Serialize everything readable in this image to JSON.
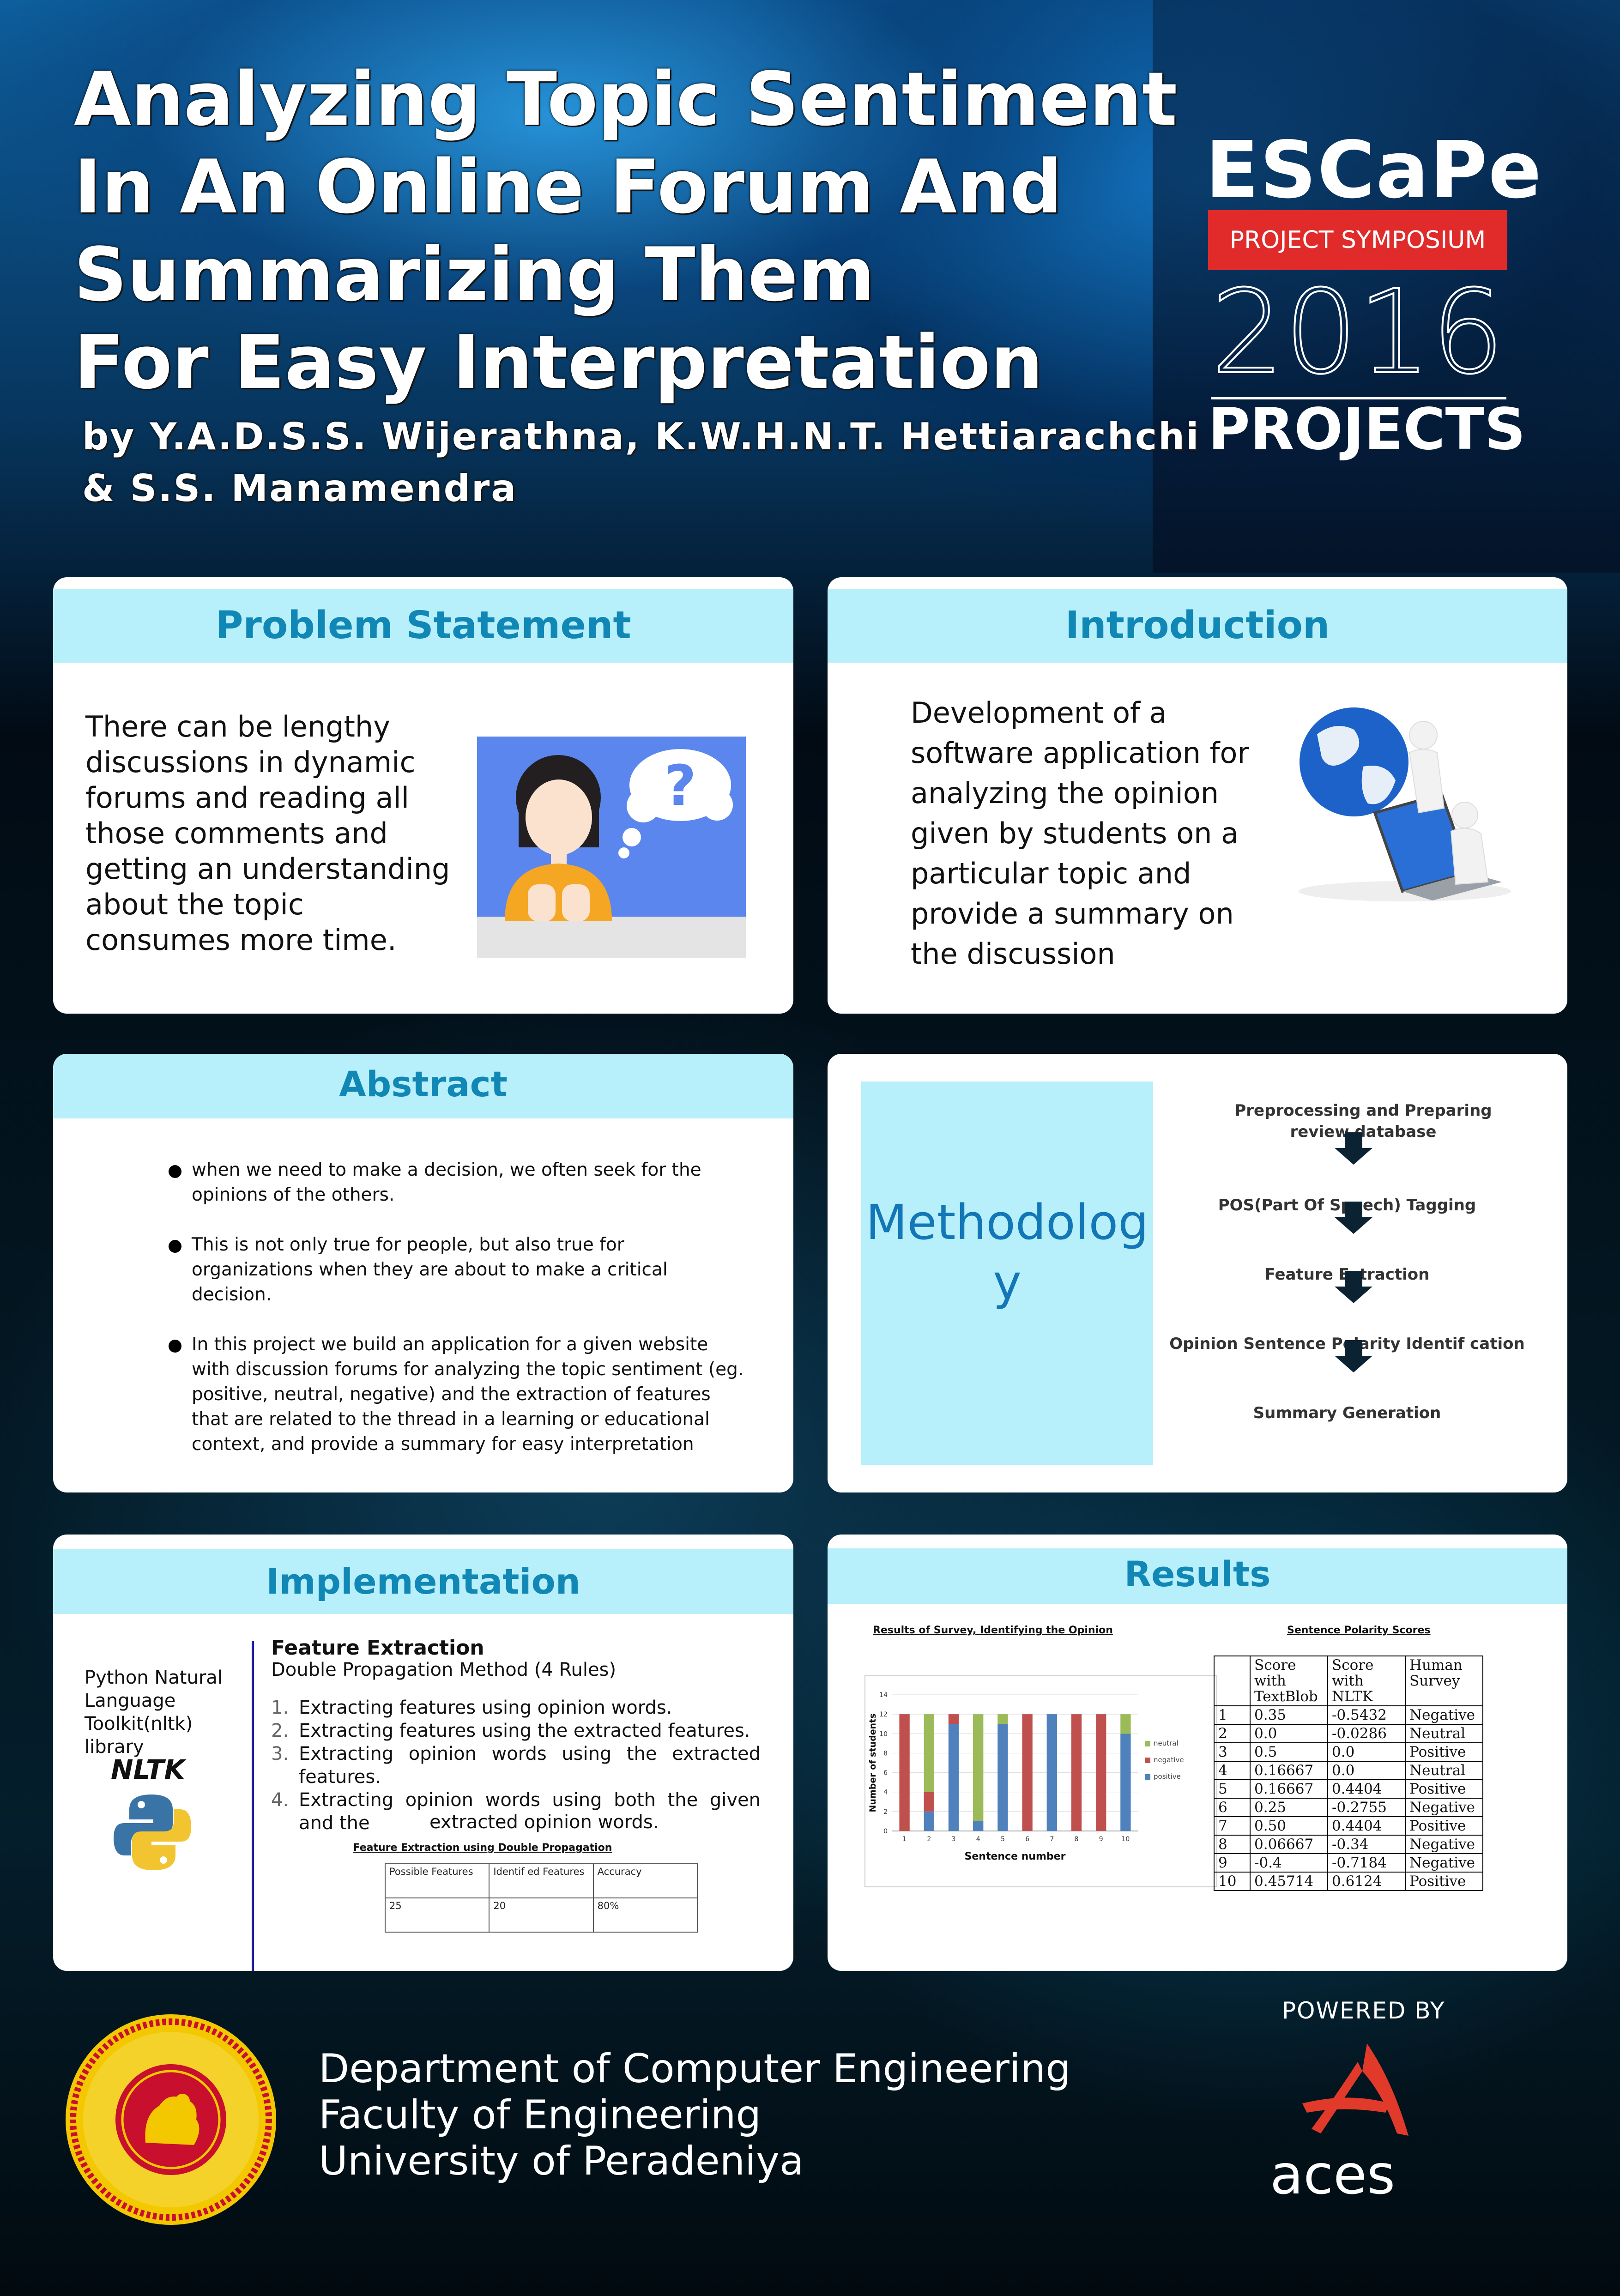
{
  "header": {
    "title_lines": [
      "Analyzing Topic Sentiment",
      "In An Online Forum And",
      "Summarizing Them",
      "For Easy Interpretation"
    ],
    "authors_lines": [
      "by Y.A.D.S.S. Wijerathna, K.W.H.N.T. Hettiarachchi",
      "& S.S. Manamendra"
    ]
  },
  "event": {
    "name": "ESCaPe",
    "band": "PROJECT SYMPOSIUM",
    "year": "2016",
    "projects": "PROJECTS"
  },
  "problem": {
    "heading": "Problem Statement",
    "text": "There can be lengthy discussions in dynamic forums and reading all those comments and getting an understanding about the topic consumes more time."
  },
  "introduction": {
    "heading": "Introduction",
    "text": "Development of a software application for analyzing the opinion given by students on a particular topic and provide a summary on the discussion"
  },
  "abstract": {
    "heading": "Abstract",
    "items": [
      "when we need to make a decision, we often seek for the opinions of the others.",
      "This is not only true for people, but also true for organizations when they are about to make a critical decision.",
      "In this project we build an application for a given  website with discussion forums for analyzing the topic sentiment (eg. positive, neutral, negative) and the extraction of features that are related to the thread in a learning or educational context, and provide a  summary for easy interpretation"
    ]
  },
  "methodology": {
    "title": "Methodology",
    "steps": [
      "Preprocessing and Preparing review database",
      "POS(Part Of Speech) Tagging",
      "Feature Extraction",
      "Opinion Sentence Polarity Identif cation",
      "Summary Generation"
    ]
  },
  "implementation": {
    "heading": "Implementation",
    "library": "Python Natural Language Toolkit(nltk) library",
    "logo_text": "NLTK",
    "feature_heading": "Feature Extraction",
    "feature_sub": "Double Propagation Method (4 Rules)",
    "rules": [
      "Extracting features using opinion words.",
      "Extracting features using the extracted features.",
      "Extracting  opinion  words  using  the  extracted features.",
      "Extracting  opinion  words  using  both  the  given and the"
    ],
    "rule_nums": [
      "1.",
      "2.",
      "3.",
      "4."
    ],
    "rule4_tail": "extracted opinion words.",
    "table_caption": "Feature Extraction using Double Propagation",
    "table_headers": [
      "Possible Features",
      "Identif ed Features",
      "Accuracy"
    ],
    "table_row": [
      "25",
      "20",
      "80%"
    ]
  },
  "results": {
    "heading": "Results",
    "chart_caption": "Results of Survey, Identifying the Opinion",
    "table_caption": "Sentence Polarity Scores",
    "table_headers": [
      "",
      "Score with TextBlob",
      "Score with NLTK",
      "Human Survey"
    ],
    "table_rows": [
      [
        "1",
        "0.35",
        "-0.5432",
        "Negative"
      ],
      [
        "2",
        "0.0",
        "-0.0286",
        "Neutral"
      ],
      [
        "3",
        "0.5",
        "0.0",
        "Positive"
      ],
      [
        "4",
        "0.16667",
        "0.0",
        "Neutral"
      ],
      [
        "5",
        "0.16667",
        "0.4404",
        "Positive"
      ],
      [
        "6",
        "0.25",
        "-0.2755",
        "Negative"
      ],
      [
        "7",
        "0.50",
        "0.4404",
        "Positive"
      ],
      [
        "8",
        "0.06667",
        "-0.34",
        "Negative"
      ],
      [
        "9",
        "-0.4",
        "-0.7184",
        "Negative"
      ],
      [
        "10",
        "0.45714",
        "0.6124",
        "Positive"
      ]
    ]
  },
  "chart_data": {
    "type": "bar",
    "stacked": true,
    "title": "Results of Survey, Identifying the Opinion",
    "xlabel": "Sentence number",
    "ylabel": "Number of students",
    "categories": [
      "1",
      "2",
      "3",
      "4",
      "5",
      "6",
      "7",
      "8",
      "9",
      "10"
    ],
    "ylim": [
      0,
      14
    ],
    "yticks": [
      0,
      2,
      4,
      6,
      8,
      10,
      12,
      14
    ],
    "series": [
      {
        "name": "positive",
        "color": "#4f81bd",
        "values": [
          0,
          2,
          11,
          1,
          11,
          0,
          12,
          0,
          0,
          10
        ]
      },
      {
        "name": "negative",
        "color": "#c0504d",
        "values": [
          12,
          2,
          1,
          0,
          0,
          12,
          0,
          12,
          12,
          0
        ]
      },
      {
        "name": "neutral",
        "color": "#9bbb59",
        "values": [
          0,
          8,
          0,
          11,
          1,
          0,
          0,
          0,
          0,
          2
        ]
      }
    ],
    "legend": "right",
    "grid": true
  },
  "footer": {
    "dept_lines": [
      "Department of Computer Engineering",
      "Faculty of Engineering",
      "University of Peradeniya"
    ],
    "powered_by": "POWERED BY",
    "sponsor": "aces"
  }
}
